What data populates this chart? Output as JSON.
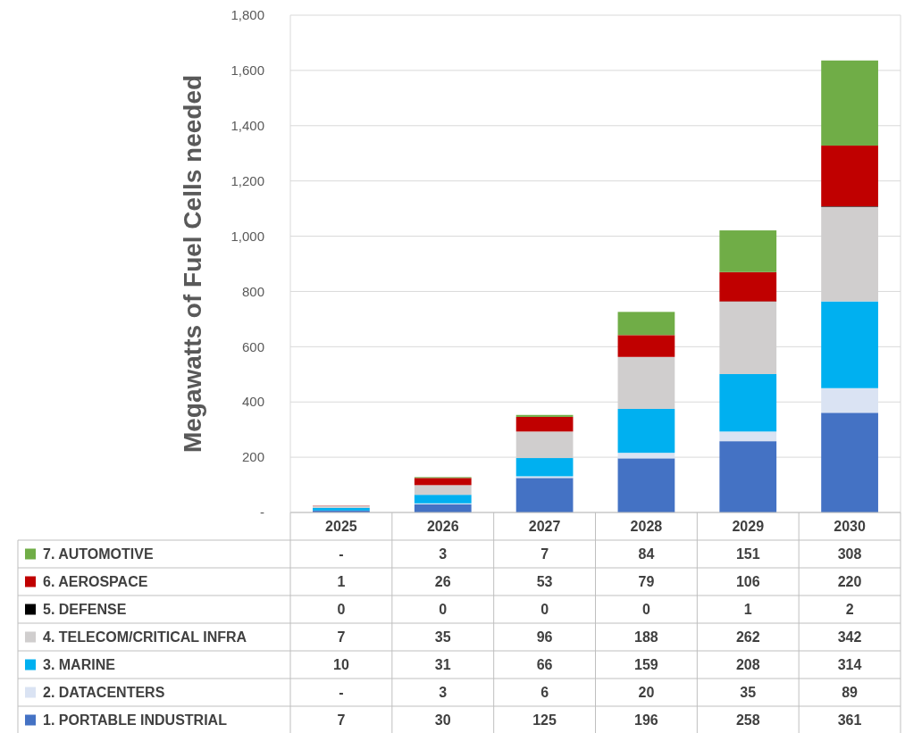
{
  "chart_data": {
    "type": "bar",
    "stacked": true,
    "ylabel": "Megawatts of Fuel Cells needed",
    "categories": [
      "2025",
      "2026",
      "2027",
      "2028",
      "2029",
      "2030"
    ],
    "series": [
      {
        "name": "1. PORTABLE INDUSTRIAL",
        "color": "#4472c4",
        "values": [
          7,
          30,
          125,
          196,
          258,
          361
        ]
      },
      {
        "name": "2. DATACENTERS",
        "color": "#dae3f3",
        "values": [
          0,
          3,
          6,
          20,
          35,
          89
        ],
        "value_labels": [
          "-",
          "3",
          "6",
          "20",
          "35",
          "89"
        ]
      },
      {
        "name": "3. MARINE",
        "color": "#00b0f0",
        "values": [
          10,
          31,
          66,
          159,
          208,
          314
        ]
      },
      {
        "name": "4. TELECOM/CRITICAL INFRA",
        "color": "#d0cece",
        "values": [
          7,
          35,
          96,
          188,
          262,
          342
        ]
      },
      {
        "name": "5. DEFENSE",
        "color": "#000000",
        "values": [
          0,
          0,
          0,
          0,
          1,
          2
        ]
      },
      {
        "name": "6. AEROSPACE",
        "color": "#c00000",
        "values": [
          1,
          26,
          53,
          79,
          106,
          220
        ]
      },
      {
        "name": "7. AUTOMOTIVE",
        "color": "#70ad47",
        "values": [
          0,
          3,
          7,
          84,
          151,
          308
        ],
        "value_labels": [
          "-",
          "3",
          "7",
          "84",
          "151",
          "308"
        ]
      }
    ],
    "ylim": [
      0,
      1800
    ],
    "yticks": [
      {
        "value": 0,
        "label": "-"
      },
      200,
      400,
      600,
      800,
      {
        "value": 1000,
        "label": "1,000"
      },
      {
        "value": 1200,
        "label": "1,200"
      },
      {
        "value": 1400,
        "label": "1,400"
      },
      {
        "value": 1600,
        "label": "1,600"
      },
      {
        "value": 1800,
        "label": "1,800"
      }
    ],
    "grid": "y",
    "legend": "bottom",
    "data_labels": true
  }
}
